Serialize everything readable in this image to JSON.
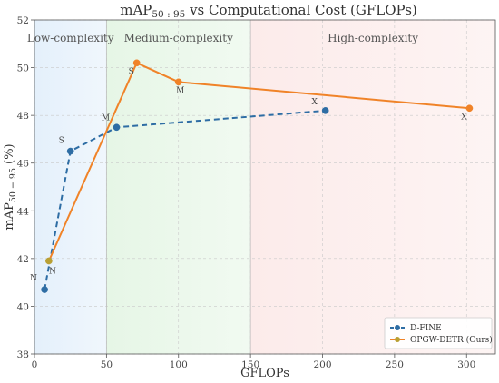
{
  "chart_data": {
    "type": "line",
    "title": "mAP",
    "title_sub": "50 : 95",
    "title_rest": " vs Computational Cost (GFLOPs)",
    "xlabel": "GFLOPs",
    "ylabel": "mAP",
    "ylabel_sub": "50 − 95",
    "ylabel_rest": " (%)",
    "xlim": [
      0,
      320
    ],
    "ylim": [
      38,
      52
    ],
    "xticks": [
      0,
      50,
      100,
      150,
      200,
      250,
      300
    ],
    "yticks": [
      38,
      40,
      42,
      44,
      46,
      48,
      50,
      52
    ],
    "grid": true,
    "legend_position": "bottom-right",
    "regions": [
      {
        "label": "Low-complexity",
        "x_start": 0,
        "x_end": 50,
        "color": "#e4f0fb"
      },
      {
        "label": "Medium-complexity",
        "x_start": 50,
        "x_end": 150,
        "color": "#e6f6e6"
      },
      {
        "label": "High-complexity",
        "x_start": 150,
        "x_end": 320,
        "color": "#fcebea"
      }
    ],
    "series": [
      {
        "name": "D-FINE",
        "color": "#2e6da4",
        "line_style": "dashed",
        "points": [
          {
            "x": 7,
            "y": 40.7,
            "label": "N"
          },
          {
            "x": 25,
            "y": 46.5,
            "label": "S"
          },
          {
            "x": 57,
            "y": 47.5,
            "label": "M"
          },
          {
            "x": 202,
            "y": 48.2,
            "label": "X"
          }
        ]
      },
      {
        "name": "OPGW-DETR (Ours)",
        "color": "#f08328",
        "marker_color": "#b9a033",
        "line_style": "solid",
        "points": [
          {
            "x": 10,
            "y": 41.9,
            "label": "N"
          },
          {
            "x": 71,
            "y": 50.2,
            "label": "S"
          },
          {
            "x": 100,
            "y": 49.4,
            "label": "M"
          },
          {
            "x": 302,
            "y": 48.3,
            "label": "X"
          }
        ]
      }
    ]
  }
}
